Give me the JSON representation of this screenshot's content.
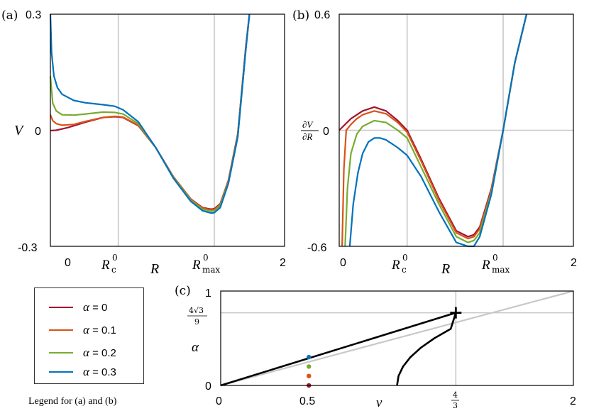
{
  "chart_data": [
    {
      "type": "line",
      "panel_label": "(a)",
      "xlabel": "R",
      "ylabel": "V",
      "xlim": [
        0,
        2
      ],
      "ylim": [
        -0.3,
        0.3
      ],
      "xtick_labels": [
        "0",
        "2"
      ],
      "ytick_labels": [
        "0.3",
        "0",
        "-0.3"
      ],
      "vlines": [
        {
          "x": 0.58,
          "label": "R",
          "sup": "0",
          "sub": "c"
        },
        {
          "x": 1.4,
          "label": "R",
          "sup": "0",
          "sub": "max"
        }
      ],
      "series": [
        {
          "name": "α = 0",
          "x": [
            0,
            0.05,
            0.15,
            0.3,
            0.45,
            0.55,
            0.62,
            0.75,
            0.9,
            1.05,
            1.2,
            1.3,
            1.37,
            1.4,
            1.45,
            1.52,
            1.6,
            1.67,
            1.7
          ],
          "values": [
            -0.001,
            0.0,
            0.007,
            0.021,
            0.033,
            0.035,
            0.033,
            0.012,
            -0.045,
            -0.12,
            -0.178,
            -0.2,
            -0.204,
            -0.203,
            -0.19,
            -0.13,
            -0.01,
            0.22,
            0.3
          ]
        },
        {
          "name": "α = 0.1",
          "x": [
            0,
            0.02,
            0.05,
            0.1,
            0.2,
            0.3,
            0.45,
            0.55,
            0.62,
            0.75,
            0.9,
            1.05,
            1.2,
            1.3,
            1.37,
            1.4,
            1.45,
            1.52,
            1.6,
            1.67,
            1.7
          ],
          "values": [
            0.04,
            0.025,
            0.017,
            0.013,
            0.015,
            0.023,
            0.033,
            0.036,
            0.034,
            0.013,
            -0.045,
            -0.12,
            -0.179,
            -0.201,
            -0.206,
            -0.205,
            -0.192,
            -0.132,
            -0.012,
            0.218,
            0.3
          ]
        },
        {
          "name": "α = 0.2",
          "x": [
            0,
            0.02,
            0.05,
            0.1,
            0.2,
            0.3,
            0.45,
            0.55,
            0.62,
            0.75,
            0.9,
            1.05,
            1.2,
            1.3,
            1.37,
            1.4,
            1.45,
            1.52,
            1.6,
            1.67,
            1.7
          ],
          "values": [
            0.14,
            0.07,
            0.05,
            0.04,
            0.039,
            0.042,
            0.047,
            0.046,
            0.042,
            0.017,
            -0.045,
            -0.122,
            -0.181,
            -0.204,
            -0.209,
            -0.208,
            -0.195,
            -0.135,
            -0.015,
            0.215,
            0.3
          ]
        },
        {
          "name": "α = 0.3",
          "x": [
            0,
            0.01,
            0.03,
            0.06,
            0.1,
            0.2,
            0.3,
            0.45,
            0.55,
            0.62,
            0.75,
            0.9,
            1.05,
            1.2,
            1.3,
            1.37,
            1.4,
            1.45,
            1.52,
            1.6,
            1.67,
            1.7
          ],
          "values": [
            0.3,
            0.2,
            0.14,
            0.11,
            0.093,
            0.077,
            0.071,
            0.066,
            0.062,
            0.053,
            0.022,
            -0.045,
            -0.124,
            -0.184,
            -0.208,
            -0.214,
            -0.213,
            -0.2,
            -0.138,
            -0.018,
            0.212,
            0.3
          ]
        }
      ]
    },
    {
      "type": "line",
      "panel_label": "(b)",
      "xlabel": "R",
      "ylabel_num": "∂V",
      "ylabel_den": "∂R",
      "xlim": [
        0,
        2
      ],
      "ylim": [
        -0.6,
        0.6
      ],
      "xtick_labels": [
        "0",
        "2"
      ],
      "ytick_labels": [
        "0.6",
        "0",
        "-0.6"
      ],
      "vlines": [
        {
          "x": 0.58,
          "label": "R",
          "sup": "0",
          "sub": "c"
        },
        {
          "x": 1.4,
          "label": "R",
          "sup": "0",
          "sub": "max"
        }
      ],
      "series": [
        {
          "name": "α = 0",
          "x": [
            0,
            0.1,
            0.2,
            0.3,
            0.4,
            0.5,
            0.58,
            0.7,
            0.85,
            1.0,
            1.1,
            1.15,
            1.2,
            1.3,
            1.4,
            1.5,
            1.6
          ],
          "values": [
            0.0,
            0.06,
            0.1,
            0.12,
            0.1,
            0.05,
            0.0,
            -0.15,
            -0.35,
            -0.52,
            -0.55,
            -0.54,
            -0.5,
            -0.3,
            0.0,
            0.35,
            0.6
          ]
        },
        {
          "name": "α = 0.1",
          "x": [
            0.025,
            0.04,
            0.06,
            0.1,
            0.15,
            0.2,
            0.3,
            0.4,
            0.5,
            0.58,
            0.7,
            0.85,
            1.0,
            1.1,
            1.15,
            1.2,
            1.3,
            1.4,
            1.5,
            1.6
          ],
          "values": [
            -0.6,
            -0.2,
            0.0,
            0.03,
            0.06,
            0.08,
            0.1,
            0.085,
            0.04,
            -0.01,
            -0.16,
            -0.36,
            -0.53,
            -0.56,
            -0.55,
            -0.51,
            -0.31,
            0.0,
            0.35,
            0.6
          ]
        },
        {
          "name": "α = 0.2",
          "x": [
            0.05,
            0.07,
            0.1,
            0.15,
            0.2,
            0.3,
            0.4,
            0.5,
            0.58,
            0.7,
            0.85,
            1.0,
            1.1,
            1.15,
            1.2,
            1.3,
            1.4,
            1.5,
            1.6
          ],
          "values": [
            -0.6,
            -0.3,
            -0.12,
            -0.02,
            0.02,
            0.05,
            0.04,
            0.0,
            -0.04,
            -0.19,
            -0.38,
            -0.55,
            -0.58,
            -0.57,
            -0.53,
            -0.32,
            0.0,
            0.35,
            0.6
          ]
        },
        {
          "name": "α = 0.3",
          "x": [
            0.09,
            0.12,
            0.16,
            0.2,
            0.25,
            0.3,
            0.35,
            0.4,
            0.5,
            0.58,
            0.7,
            0.85,
            1.0,
            1.1,
            1.15,
            1.2,
            1.3,
            1.4,
            1.5,
            1.6
          ],
          "values": [
            -0.6,
            -0.38,
            -0.22,
            -0.12,
            -0.06,
            -0.04,
            -0.04,
            -0.05,
            -0.09,
            -0.13,
            -0.24,
            -0.42,
            -0.58,
            -0.61,
            -0.6,
            -0.55,
            -0.33,
            0.0,
            0.35,
            0.6
          ]
        }
      ]
    },
    {
      "type": "line",
      "panel_label": "(c)",
      "xlabel": "ν",
      "ylabel": "α",
      "xlim": [
        0,
        2
      ],
      "ylim": [
        0,
        1
      ],
      "xtick_labels": [
        "0",
        "0.5",
        "2"
      ],
      "xtick_frac": {
        "num": "4",
        "den": "3"
      },
      "ytick_labels": [
        "1",
        "0"
      ],
      "ytick_frac": {
        "num": "4√3",
        "den": "9"
      },
      "series": [
        {
          "name": "linear branch",
          "x": [
            0,
            1.3333
          ],
          "values": [
            0,
            0.7698
          ]
        },
        {
          "name": "curved branch",
          "x": [
            1.0,
            1.0084,
            1.0338,
            1.0762,
            1.1354,
            1.2116,
            1.3047,
            1.3333
          ],
          "values": [
            0,
            0.1,
            0.2,
            0.3,
            0.4,
            0.5,
            0.6,
            0.7698
          ]
        },
        {
          "name": "gray line",
          "x": [
            0,
            2.0
          ],
          "values": [
            0,
            1.0
          ]
        }
      ],
      "marker": {
        "x": 1.3333,
        "y": 0.7698,
        "symbol": "+"
      },
      "points": [
        {
          "x": 0.5,
          "y": 0.0,
          "color": "#a2142f"
        },
        {
          "x": 0.5,
          "y": 0.1,
          "color": "#d95319"
        },
        {
          "x": 0.5,
          "y": 0.2,
          "color": "#77ac30"
        },
        {
          "x": 0.5,
          "y": 0.3,
          "color": "#0072bd"
        }
      ]
    }
  ],
  "legend": {
    "items": [
      {
        "sym": "α",
        "text": " = 0",
        "color": "#a2142f"
      },
      {
        "sym": "α",
        "text": " = 0.1",
        "color": "#d95319"
      },
      {
        "sym": "α",
        "text": " = 0.2",
        "color": "#77ac30"
      },
      {
        "sym": "α",
        "text": " = 0.3",
        "color": "#0072bd"
      }
    ],
    "caption": "Legend for (a) and (b)"
  },
  "colors": {
    "alpha0": "#a2142f",
    "alpha01": "#d95319",
    "alpha02": "#77ac30",
    "alpha03": "#0072bd",
    "grid": "#c8c8c8",
    "black": "#000000"
  }
}
